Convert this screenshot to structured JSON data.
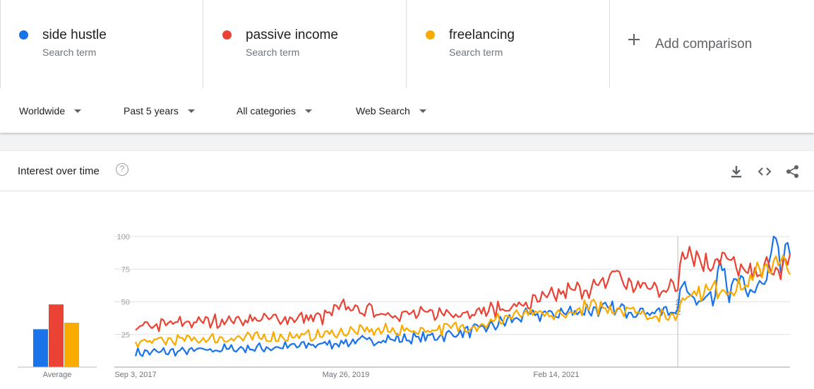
{
  "terms": [
    {
      "name": "side hustle",
      "sub": "Search term",
      "color": "#1a73e8"
    },
    {
      "name": "passive income",
      "sub": "Search term",
      "color": "#ea4335"
    },
    {
      "name": "freelancing",
      "sub": "Search term",
      "color": "#f9ab00"
    }
  ],
  "add_comparison": "Add comparison",
  "filters": {
    "region": "Worldwide",
    "time": "Past 5 years",
    "category": "All categories",
    "search_type": "Web Search"
  },
  "card": {
    "title": "Interest over time",
    "help_icon": "help-icon",
    "icons": [
      "download-icon",
      "embed-code-icon",
      "share-icon"
    ]
  },
  "chart_data": {
    "type": "line",
    "ylim": [
      0,
      100
    ],
    "y_ticks": [
      25,
      50,
      75,
      100
    ],
    "x_ticks": [
      "Sep 3, 2017",
      "May 26, 2019",
      "Feb 14, 2021"
    ],
    "x_tick_index": [
      0,
      90,
      180
    ],
    "note_label": "Note",
    "note_index": 232,
    "averages": {
      "label": "Average",
      "values": [
        29,
        48,
        34
      ]
    },
    "series": [
      {
        "name": "side hustle",
        "color": "#1a73e8",
        "anchors": [
          [
            0,
            11
          ],
          [
            20,
            12
          ],
          [
            40,
            14
          ],
          [
            60,
            15
          ],
          [
            75,
            17
          ],
          [
            90,
            19
          ],
          [
            105,
            21
          ],
          [
            120,
            22
          ],
          [
            135,
            25
          ],
          [
            150,
            30
          ],
          [
            160,
            36
          ],
          [
            170,
            40
          ],
          [
            180,
            41
          ],
          [
            195,
            44
          ],
          [
            210,
            44
          ],
          [
            225,
            42
          ],
          [
            232,
            44
          ],
          [
            234,
            64
          ],
          [
            240,
            52
          ],
          [
            248,
            54
          ],
          [
            250,
            92
          ],
          [
            254,
            55
          ],
          [
            258,
            68
          ],
          [
            262,
            54
          ],
          [
            266,
            63
          ],
          [
            270,
            64
          ],
          [
            273,
            98
          ],
          [
            276,
            76
          ],
          [
            280,
            92
          ]
        ]
      },
      {
        "name": "passive income",
        "color": "#ea4335",
        "anchors": [
          [
            0,
            30
          ],
          [
            20,
            34
          ],
          [
            40,
            36
          ],
          [
            60,
            37
          ],
          [
            80,
            38
          ],
          [
            90,
            47
          ],
          [
            95,
            44
          ],
          [
            105,
            42
          ],
          [
            120,
            40
          ],
          [
            135,
            42
          ],
          [
            150,
            43
          ],
          [
            165,
            47
          ],
          [
            175,
            52
          ],
          [
            185,
            58
          ],
          [
            200,
            62
          ],
          [
            205,
            75
          ],
          [
            210,
            63
          ],
          [
            225,
            60
          ],
          [
            232,
            62
          ],
          [
            234,
            93
          ],
          [
            240,
            85
          ],
          [
            245,
            78
          ],
          [
            250,
            86
          ],
          [
            256,
            78
          ],
          [
            262,
            70
          ],
          [
            270,
            76
          ],
          [
            275,
            72
          ],
          [
            280,
            82
          ]
        ]
      },
      {
        "name": "freelancing",
        "color": "#f9ab00",
        "anchors": [
          [
            0,
            19
          ],
          [
            20,
            21
          ],
          [
            40,
            22
          ],
          [
            60,
            23
          ],
          [
            75,
            24
          ],
          [
            90,
            27
          ],
          [
            100,
            28
          ],
          [
            120,
            28
          ],
          [
            135,
            30
          ],
          [
            150,
            33
          ],
          [
            160,
            39
          ],
          [
            170,
            40
          ],
          [
            180,
            39
          ],
          [
            195,
            46
          ],
          [
            210,
            45
          ],
          [
            225,
            38
          ],
          [
            232,
            40
          ],
          [
            234,
            56
          ],
          [
            240,
            57
          ],
          [
            248,
            60
          ],
          [
            256,
            60
          ],
          [
            262,
            63
          ],
          [
            268,
            76
          ],
          [
            274,
            80
          ],
          [
            280,
            76
          ]
        ]
      }
    ]
  }
}
